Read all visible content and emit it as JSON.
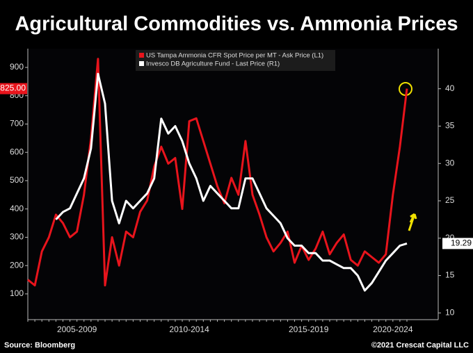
{
  "chart_data": {
    "type": "line",
    "title": "Agricultural Commodities vs. Ammonia Prices",
    "source": "Source: Bloomberg",
    "credit": "©2021 Crescat Capital LLC",
    "categories": [
      null,
      null,
      null,
      null,
      null,
      null,
      null,
      "2005-2009",
      null,
      null,
      null,
      null,
      null,
      null,
      null,
      null,
      null,
      null,
      null,
      null,
      null,
      null,
      null,
      "2010-2014",
      null,
      null,
      null,
      null,
      null,
      null,
      null,
      null,
      null,
      null,
      null,
      null,
      null,
      null,
      null,
      null,
      "2015-2019",
      null,
      null,
      null,
      null,
      null,
      null,
      null,
      null,
      null,
      null,
      null,
      "2020-2024",
      null,
      null
    ],
    "ylim": [
      9,
      954
    ],
    "yticks": [
      100,
      200,
      300,
      400,
      500,
      600,
      700,
      800,
      900
    ],
    "y2lim": [
      9.1,
      44.9
    ],
    "y2ticks": [
      10,
      15,
      20,
      25,
      30,
      35,
      40
    ],
    "legend": "top",
    "series": [
      {
        "name": "US Tampa Ammonia CFR Spot Price per MT - Ask Price (L1)",
        "color": "#e8141c",
        "last_label": "825.00",
        "values": [
          150,
          130,
          250,
          300,
          380,
          350,
          300,
          320,
          450,
          650,
          930,
          130,
          300,
          200,
          320,
          300,
          390,
          430,
          550,
          620,
          560,
          580,
          400,
          710,
          720,
          640,
          560,
          480,
          420,
          510,
          450,
          640,
          450,
          380,
          300,
          250,
          280,
          320,
          210,
          270,
          220,
          260,
          320,
          240,
          280,
          310,
          220,
          200,
          250,
          230,
          210,
          240,
          450,
          620,
          825
        ]
      },
      {
        "name": "Invesco DB Agriculture Fund - Last Price (R1)",
        "color": "#ffffff",
        "axis": "y2",
        "last_label": "19.29",
        "values": [
          null,
          null,
          null,
          null,
          22.5,
          23.5,
          24,
          26,
          28,
          32,
          42,
          38,
          25,
          22,
          25,
          24,
          25,
          26,
          28,
          36,
          34,
          35,
          33,
          30,
          28,
          25,
          27,
          26,
          25,
          24,
          24,
          28,
          28,
          26,
          24,
          23,
          22,
          20,
          19,
          19,
          18,
          18,
          17,
          17,
          16.5,
          16,
          16,
          15,
          13,
          14,
          15.5,
          17,
          18,
          19,
          19.29
        ]
      }
    ]
  }
}
